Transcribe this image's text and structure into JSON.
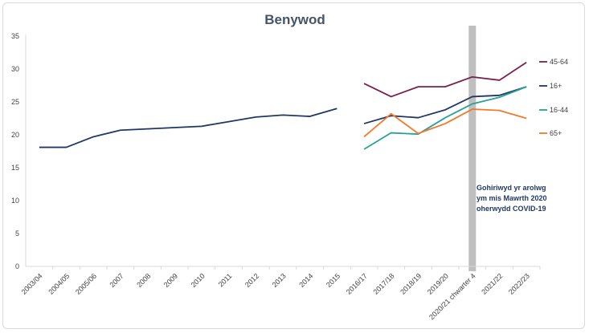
{
  "chart_data": {
    "type": "line",
    "title": "Benywod",
    "xlabel": "",
    "ylabel": "",
    "ylim": [
      0,
      35
    ],
    "yticks": [
      0,
      5,
      10,
      15,
      20,
      25,
      30,
      35
    ],
    "grid": false,
    "legend_position": "right",
    "categories": [
      "2003/04",
      "2004/05",
      "2005/06",
      "2007",
      "2008",
      "2009",
      "2010",
      "2011",
      "2012",
      "2013",
      "2014",
      "2015",
      "2016/17",
      "2017/18",
      "2018/19",
      "2019/20",
      "2020/21 chwarter 4",
      "2021/22",
      "2022/23"
    ],
    "series": [
      {
        "name": "",
        "color": "#1f3864",
        "values": [
          18.1,
          18.1,
          19.7,
          20.7,
          20.9,
          21.1,
          21.3,
          22.0,
          22.7,
          23.0,
          22.8,
          24.0,
          null,
          null,
          null,
          null,
          null,
          null,
          null
        ]
      },
      {
        "name": "45-64",
        "color": "#7b1f4e",
        "values": [
          null,
          null,
          null,
          null,
          null,
          null,
          null,
          null,
          null,
          null,
          null,
          null,
          27.8,
          25.8,
          27.3,
          27.3,
          28.8,
          28.3,
          31.0
        ]
      },
      {
        "name": "16+",
        "color": "#1f3864",
        "values": [
          null,
          null,
          null,
          null,
          null,
          null,
          null,
          null,
          null,
          null,
          null,
          null,
          21.7,
          22.9,
          22.6,
          23.8,
          25.8,
          26.0,
          27.3
        ]
      },
      {
        "name": "16-44",
        "color": "#2aa198",
        "values": [
          null,
          null,
          null,
          null,
          null,
          null,
          null,
          null,
          null,
          null,
          null,
          null,
          17.8,
          20.3,
          20.1,
          22.6,
          24.7,
          25.7,
          27.3
        ]
      },
      {
        "name": "65+",
        "color": "#f07a2a",
        "values": [
          null,
          null,
          null,
          null,
          null,
          null,
          null,
          null,
          null,
          null,
          null,
          null,
          19.7,
          23.2,
          20.2,
          21.7,
          23.9,
          23.7,
          22.5
        ]
      }
    ],
    "covid_band": {
      "category": "2020/21 chwarter 4",
      "color": "#bfbfbf"
    },
    "annotation": [
      "Gohiriwyd yr arolwg",
      "ym mis Mawrth 2020",
      "oherwydd COVID-19"
    ],
    "axis_color": "#d9d9d9"
  }
}
